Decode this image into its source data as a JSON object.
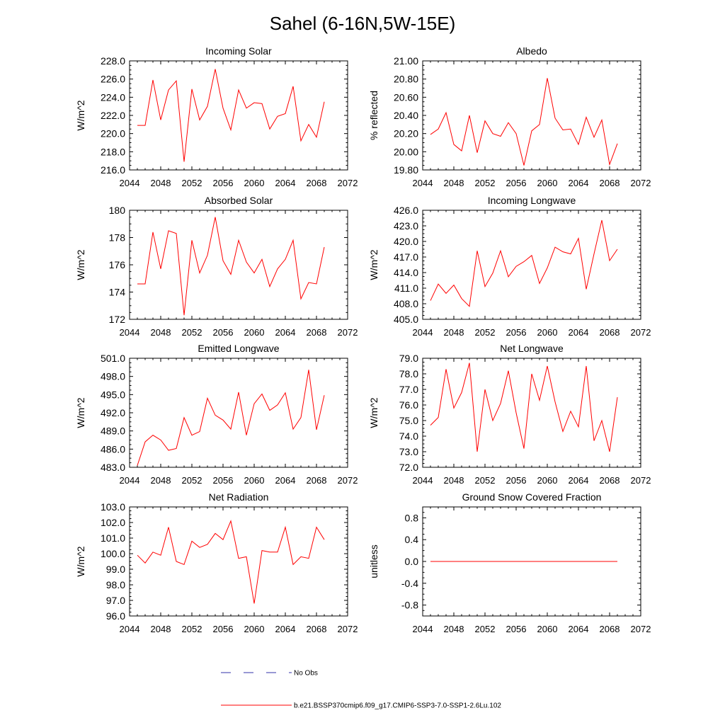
{
  "figure_title": "Sahel (6-16N,5W-15E)",
  "legend": {
    "obs_label": "No Obs",
    "model_label": "b.e21.BSSP370cmip6.f09_g17.CMIP6-SSP3-7.0-SSP1-2.6Lu.102",
    "model_color": "#ff0000",
    "obs_color": "#3333aa"
  },
  "chart_data": [
    {
      "type": "line",
      "title": "Incoming Solar",
      "ylabel": "W/m^2",
      "xlabel": "",
      "xlim": [
        2044,
        2072
      ],
      "ylim": [
        216.0,
        228.0
      ],
      "xticks": [
        "2044",
        "2048",
        "2052",
        "2056",
        "2060",
        "2064",
        "2068",
        "2072"
      ],
      "yticks": [
        "216.0",
        "218.0",
        "220.0",
        "222.0",
        "224.0",
        "226.0",
        "228.0"
      ],
      "x": [
        2045,
        2046,
        2047,
        2048,
        2049,
        2050,
        2051,
        2052,
        2053,
        2054,
        2055,
        2056,
        2057,
        2058,
        2059,
        2060,
        2061,
        2062,
        2063,
        2064,
        2065,
        2066,
        2067,
        2068,
        2069
      ],
      "series": [
        {
          "color": "#ff0000",
          "values": [
            220.9,
            220.9,
            225.9,
            221.5,
            224.8,
            225.8,
            216.9,
            224.9,
            221.5,
            223.0,
            227.1,
            222.8,
            220.4,
            224.8,
            222.8,
            223.4,
            223.3,
            220.5,
            221.9,
            222.2,
            225.2,
            219.2,
            221.0,
            219.6,
            223.5
          ]
        }
      ]
    },
    {
      "type": "line",
      "title": "Albedo",
      "ylabel": "% reflected",
      "xlabel": "",
      "xlim": [
        2044,
        2072
      ],
      "ylim": [
        19.8,
        21.0
      ],
      "xticks": [
        "2044",
        "2048",
        "2052",
        "2056",
        "2060",
        "2064",
        "2068",
        "2072"
      ],
      "yticks": [
        "19.80",
        "20.00",
        "20.20",
        "20.40",
        "20.60",
        "20.80",
        "21.00"
      ],
      "x": [
        2045,
        2046,
        2047,
        2048,
        2049,
        2050,
        2051,
        2052,
        2053,
        2054,
        2055,
        2056,
        2057,
        2058,
        2059,
        2060,
        2061,
        2062,
        2063,
        2064,
        2065,
        2066,
        2067,
        2068,
        2069
      ],
      "series": [
        {
          "color": "#ff0000",
          "values": [
            20.19,
            20.25,
            20.43,
            20.08,
            20.01,
            20.4,
            19.99,
            20.34,
            20.2,
            20.17,
            20.32,
            20.2,
            19.85,
            20.23,
            20.3,
            20.81,
            20.37,
            20.24,
            20.25,
            20.08,
            20.38,
            20.16,
            20.35,
            19.86,
            20.09
          ]
        }
      ]
    },
    {
      "type": "line",
      "title": "Absorbed Solar",
      "ylabel": "W/m^2",
      "xlabel": "",
      "xlim": [
        2044,
        2072
      ],
      "ylim": [
        172,
        180
      ],
      "xticks": [
        "2044",
        "2048",
        "2052",
        "2056",
        "2060",
        "2064",
        "2068",
        "2072"
      ],
      "yticks": [
        "172",
        "174",
        "176",
        "178",
        "180"
      ],
      "x": [
        2045,
        2046,
        2047,
        2048,
        2049,
        2050,
        2051,
        2052,
        2053,
        2054,
        2055,
        2056,
        2057,
        2058,
        2059,
        2060,
        2061,
        2062,
        2063,
        2064,
        2065,
        2066,
        2067,
        2068,
        2069
      ],
      "series": [
        {
          "color": "#ff0000",
          "values": [
            174.6,
            174.6,
            178.4,
            175.7,
            178.5,
            178.3,
            172.3,
            177.8,
            175.4,
            176.7,
            179.5,
            176.3,
            175.3,
            177.8,
            176.2,
            175.4,
            176.4,
            174.4,
            175.7,
            176.4,
            177.8,
            173.5,
            174.7,
            174.6,
            177.3
          ]
        }
      ]
    },
    {
      "type": "line",
      "title": "Incoming Longwave",
      "ylabel": "W/m^2",
      "xlabel": "",
      "xlim": [
        2044,
        2072
      ],
      "ylim": [
        405.0,
        426.0
      ],
      "xticks": [
        "2044",
        "2048",
        "2052",
        "2056",
        "2060",
        "2064",
        "2068",
        "2072"
      ],
      "yticks": [
        "405.0",
        "408.0",
        "411.0",
        "414.0",
        "417.0",
        "420.0",
        "423.0",
        "426.0"
      ],
      "x": [
        2045,
        2046,
        2047,
        2048,
        2049,
        2050,
        2051,
        2052,
        2053,
        2054,
        2055,
        2056,
        2057,
        2058,
        2059,
        2060,
        2061,
        2062,
        2063,
        2064,
        2065,
        2066,
        2067,
        2068,
        2069
      ],
      "series": [
        {
          "color": "#ff0000",
          "values": [
            408.6,
            411.8,
            410.0,
            411.6,
            409.0,
            407.5,
            418.2,
            411.3,
            413.9,
            418.2,
            413.2,
            415.2,
            416.1,
            417.3,
            411.9,
            414.9,
            418.9,
            418.0,
            417.6,
            420.6,
            410.8,
            417.6,
            424.1,
            416.3,
            418.5
          ]
        }
      ]
    },
    {
      "type": "line",
      "title": "Emitted Longwave",
      "ylabel": "W/m^2",
      "xlabel": "",
      "xlim": [
        2044,
        2072
      ],
      "ylim": [
        483.0,
        501.0
      ],
      "xticks": [
        "2044",
        "2048",
        "2052",
        "2056",
        "2060",
        "2064",
        "2068",
        "2072"
      ],
      "yticks": [
        "483.0",
        "486.0",
        "489.0",
        "492.0",
        "495.0",
        "498.0",
        "501.0"
      ],
      "x": [
        2045,
        2046,
        2047,
        2048,
        2049,
        2050,
        2051,
        2052,
        2053,
        2054,
        2055,
        2056,
        2057,
        2058,
        2059,
        2060,
        2061,
        2062,
        2063,
        2064,
        2065,
        2066,
        2067,
        2068,
        2069
      ],
      "series": [
        {
          "color": "#ff0000",
          "values": [
            483.3,
            487.2,
            488.3,
            487.5,
            485.8,
            486.1,
            491.2,
            488.3,
            488.9,
            494.4,
            491.6,
            490.8,
            489.3,
            495.4,
            488.3,
            493.5,
            495.1,
            492.4,
            493.3,
            495.3,
            489.3,
            491.2,
            499.1,
            489.2,
            494.9
          ]
        }
      ]
    },
    {
      "type": "line",
      "title": "Net Longwave",
      "ylabel": "W/m^2",
      "xlabel": "",
      "xlim": [
        2044,
        2072
      ],
      "ylim": [
        72.0,
        79.0
      ],
      "xticks": [
        "2044",
        "2048",
        "2052",
        "2056",
        "2060",
        "2064",
        "2068",
        "2072"
      ],
      "yticks": [
        "72.0",
        "73.0",
        "74.0",
        "75.0",
        "76.0",
        "77.0",
        "78.0",
        "79.0"
      ],
      "x": [
        2045,
        2046,
        2047,
        2048,
        2049,
        2050,
        2051,
        2052,
        2053,
        2054,
        2055,
        2056,
        2057,
        2058,
        2059,
        2060,
        2061,
        2062,
        2063,
        2064,
        2065,
        2066,
        2067,
        2068,
        2069
      ],
      "series": [
        {
          "color": "#ff0000",
          "values": [
            74.7,
            75.2,
            78.3,
            75.8,
            76.8,
            78.7,
            73.0,
            77.0,
            75.0,
            76.1,
            78.2,
            75.5,
            73.2,
            78.0,
            76.3,
            78.5,
            76.2,
            74.3,
            75.6,
            74.6,
            78.5,
            73.7,
            75.0,
            73.0,
            76.5
          ]
        }
      ]
    },
    {
      "type": "line",
      "title": "Net Radiation",
      "ylabel": "W/m^2",
      "xlabel": "",
      "xlim": [
        2044,
        2072
      ],
      "ylim": [
        96.0,
        103.0
      ],
      "xticks": [
        "2044",
        "2048",
        "2052",
        "2056",
        "2060",
        "2064",
        "2068",
        "2072"
      ],
      "yticks": [
        "96.0",
        "97.0",
        "98.0",
        "99.0",
        "100.0",
        "101.0",
        "102.0",
        "103.0"
      ],
      "x": [
        2045,
        2046,
        2047,
        2048,
        2049,
        2050,
        2051,
        2052,
        2053,
        2054,
        2055,
        2056,
        2057,
        2058,
        2059,
        2060,
        2061,
        2062,
        2063,
        2064,
        2065,
        2066,
        2067,
        2068,
        2069
      ],
      "series": [
        {
          "color": "#ff0000",
          "values": [
            99.9,
            99.4,
            100.1,
            99.9,
            101.7,
            99.5,
            99.3,
            100.8,
            100.4,
            100.6,
            101.3,
            100.9,
            102.1,
            99.7,
            99.8,
            96.8,
            100.2,
            100.1,
            100.1,
            101.7,
            99.3,
            99.8,
            99.7,
            101.7,
            100.9
          ]
        }
      ]
    },
    {
      "type": "line",
      "title": "Ground Snow Covered Fraction",
      "ylabel": "unitless",
      "xlabel": "",
      "xlim": [
        2044,
        2072
      ],
      "ylim": [
        -1.0,
        1.0
      ],
      "xticks": [
        "2044",
        "2048",
        "2052",
        "2056",
        "2060",
        "2064",
        "2068",
        "2072"
      ],
      "yticks": [
        "-0.8",
        "-0.4",
        "0.0",
        "0.4",
        "0.8"
      ],
      "x": [
        2045,
        2046,
        2047,
        2048,
        2049,
        2050,
        2051,
        2052,
        2053,
        2054,
        2055,
        2056,
        2057,
        2058,
        2059,
        2060,
        2061,
        2062,
        2063,
        2064,
        2065,
        2066,
        2067,
        2068,
        2069
      ],
      "series": [
        {
          "color": "#ff0000",
          "values": [
            0,
            0,
            0,
            0,
            0,
            0,
            0,
            0,
            0,
            0,
            0,
            0,
            0,
            0,
            0,
            0,
            0,
            0,
            0,
            0,
            0,
            0,
            0,
            0,
            0
          ]
        }
      ]
    }
  ]
}
